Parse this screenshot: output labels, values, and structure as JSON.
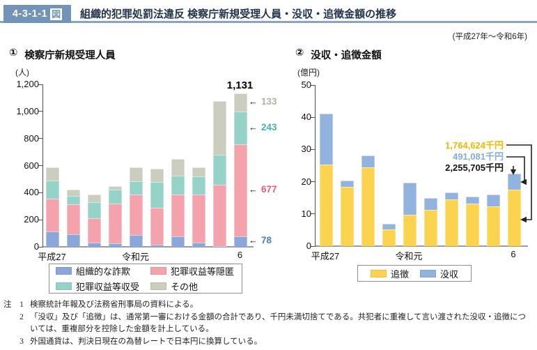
{
  "header": {
    "figure_number": "4-3-1-1",
    "figure_suffix": "図",
    "title": "組織的犯罪処罰法違反 検察庁新規受理人員・没収・追徴金額の推移",
    "period": "(平成27年～令和6年)"
  },
  "chart_data": [
    {
      "type": "bar",
      "stacked": true,
      "number": "①",
      "title": "検察庁新規受理人員",
      "unit": "(人)",
      "ylim": [
        0,
        1200
      ],
      "ytick_labels": [
        "0",
        "200",
        "400",
        "600",
        "800",
        "1,000",
        "1,200"
      ],
      "xtick_labels": [
        "平成27",
        "",
        "",
        "",
        "令和元",
        "",
        "",
        "",
        "",
        "6"
      ],
      "grid": false,
      "legend_position": "bottom",
      "series": [
        {
          "name": "組織的な詐欺",
          "color": "#89a7d9",
          "values": [
            112,
            95,
            31,
            25,
            90,
            17,
            76,
            31,
            7,
            78
          ]
        },
        {
          "name": "犯罪収益等隠匿",
          "color": "#f4a2ab",
          "values": [
            242,
            220,
            180,
            297,
            294,
            274,
            311,
            353,
            451,
            677
          ]
        },
        {
          "name": "犯罪収益等収受",
          "color": "#95d3c8",
          "values": [
            134,
            60,
            121,
            103,
            100,
            186,
            139,
            138,
            220,
            243
          ]
        },
        {
          "name": "その他",
          "color": "#cbcdbe",
          "values": [
            100,
            45,
            54,
            23,
            104,
            101,
            124,
            63,
            401,
            133
          ]
        }
      ],
      "last_bar_total_label": "1,131",
      "last_bar_segment_labels": [
        {
          "text": "78",
          "color": "#4a80c2"
        },
        {
          "text": "677",
          "color": "#e95c70"
        },
        {
          "text": "243",
          "color": "#42b4a8"
        },
        {
          "text": "133",
          "color": "#b3b4a3"
        }
      ]
    },
    {
      "type": "bar",
      "stacked": true,
      "number": "②",
      "title": "没収・追徴金額",
      "unit": "(億円)",
      "ylim": [
        0,
        50
      ],
      "ytick_labels": [
        "0",
        "10",
        "20",
        "30",
        "40",
        "50"
      ],
      "xtick_labels": [
        "平成27",
        "",
        "",
        "",
        "令和元",
        "",
        "",
        "",
        "",
        "6"
      ],
      "grid": false,
      "legend_position": "bottom",
      "series": [
        {
          "name": "追徴",
          "color": "#fbd34f",
          "values": [
            25.3,
            18.5,
            24.5,
            5.1,
            9.8,
            11.3,
            14.5,
            13.2,
            12.4,
            17.6
          ]
        },
        {
          "name": "没収",
          "color": "#92b3de",
          "values": [
            15.8,
            1.9,
            3.6,
            1.9,
            10.0,
            3.7,
            2.2,
            2.2,
            3.6,
            4.9
          ]
        }
      ],
      "annotations": [
        {
          "text": "1,764,624千円",
          "color": "#f2b800"
        },
        {
          "text": "491,081千円",
          "color": "#84abdb"
        },
        {
          "text": "2,255,705千円",
          "color": "#111111"
        }
      ]
    }
  ],
  "notes": {
    "label": "注",
    "items": [
      {
        "num": "1",
        "text": "検察統計年報及び法務省刑事局の資料による。"
      },
      {
        "num": "2",
        "text": "「没収」及び「追徴」は、通常第一審における金額の合計であり、千円未満切捨てである。共犯者に重複して言い渡された没収・追徴については、重複部分を控除した金額を計上している。"
      },
      {
        "num": "3",
        "text": "外国通貨は、判決日現在の為替レートで日本円に換算している。"
      }
    ]
  }
}
